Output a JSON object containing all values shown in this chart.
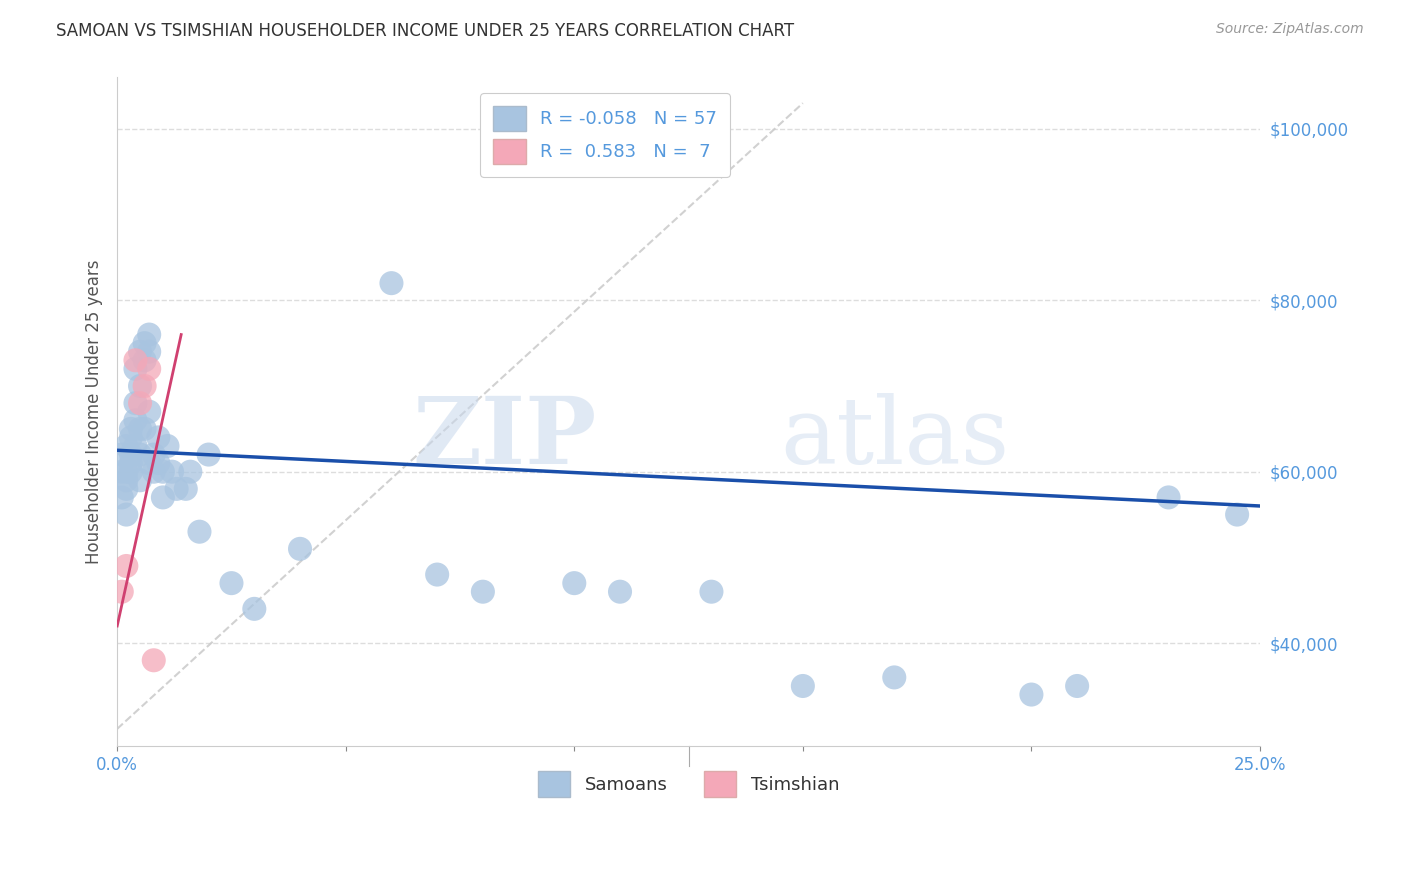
{
  "title": "SAMOAN VS TSIMSHIAN HOUSEHOLDER INCOME UNDER 25 YEARS CORRELATION CHART",
  "source": "Source: ZipAtlas.com",
  "ylabel": "Householder Income Under 25 years",
  "xlim": [
    0.0,
    0.25
  ],
  "ylim": [
    28000,
    106000
  ],
  "xticks": [
    0.0,
    0.05,
    0.1,
    0.15,
    0.2,
    0.25
  ],
  "xticklabels": [
    "0.0%",
    "",
    "",
    "",
    "",
    "25.0%"
  ],
  "yticks": [
    40000,
    60000,
    80000,
    100000
  ],
  "yticklabels": [
    "$40,000",
    "$60,000",
    "$80,000",
    "$100,000"
  ],
  "samoan_color": "#a8c4e0",
  "tsimshian_color": "#f4a8b8",
  "samoan_line_color": "#1a4faa",
  "tsimshian_line_color": "#d04070",
  "diagonal_color": "#cccccc",
  "legend_R_samoan": "-0.058",
  "legend_N_samoan": "57",
  "legend_R_tsimshian": "0.583",
  "legend_N_tsimshian": "7",
  "watermark_zip": "ZIP",
  "watermark_atlas": "atlas",
  "background_color": "#ffffff",
  "grid_color": "#dddddd",
  "samoan_x": [
    0.001,
    0.001,
    0.001,
    0.002,
    0.002,
    0.002,
    0.002,
    0.002,
    0.003,
    0.003,
    0.003,
    0.003,
    0.003,
    0.004,
    0.004,
    0.004,
    0.004,
    0.005,
    0.005,
    0.005,
    0.005,
    0.005,
    0.006,
    0.006,
    0.006,
    0.007,
    0.007,
    0.007,
    0.007,
    0.008,
    0.008,
    0.009,
    0.009,
    0.01,
    0.01,
    0.011,
    0.012,
    0.013,
    0.015,
    0.016,
    0.018,
    0.02,
    0.025,
    0.03,
    0.04,
    0.06,
    0.07,
    0.08,
    0.1,
    0.11,
    0.13,
    0.15,
    0.17,
    0.2,
    0.21,
    0.23,
    0.245
  ],
  "samoan_y": [
    60000,
    62000,
    57000,
    63000,
    60000,
    58000,
    55000,
    59000,
    61000,
    64000,
    62000,
    65000,
    60000,
    72000,
    68000,
    63000,
    66000,
    74000,
    70000,
    65000,
    62000,
    59000,
    75000,
    73000,
    65000,
    76000,
    74000,
    67000,
    61000,
    60000,
    62000,
    64000,
    61000,
    60000,
    57000,
    63000,
    60000,
    58000,
    58000,
    60000,
    53000,
    62000,
    47000,
    44000,
    51000,
    82000,
    48000,
    46000,
    47000,
    46000,
    46000,
    35000,
    36000,
    34000,
    35000,
    57000,
    55000
  ],
  "tsimshian_x": [
    0.001,
    0.002,
    0.004,
    0.005,
    0.006,
    0.007,
    0.008
  ],
  "tsimshian_y": [
    46000,
    49000,
    73000,
    68000,
    70000,
    72000,
    38000
  ],
  "samoan_line_x0": 0.0,
  "samoan_line_y0": 62500,
  "samoan_line_x1": 0.25,
  "samoan_line_y1": 56000,
  "tsimshian_line_x0": 0.0,
  "tsimshian_line_y0": 42000,
  "tsimshian_line_x1": 0.014,
  "tsimshian_line_y1": 76000
}
